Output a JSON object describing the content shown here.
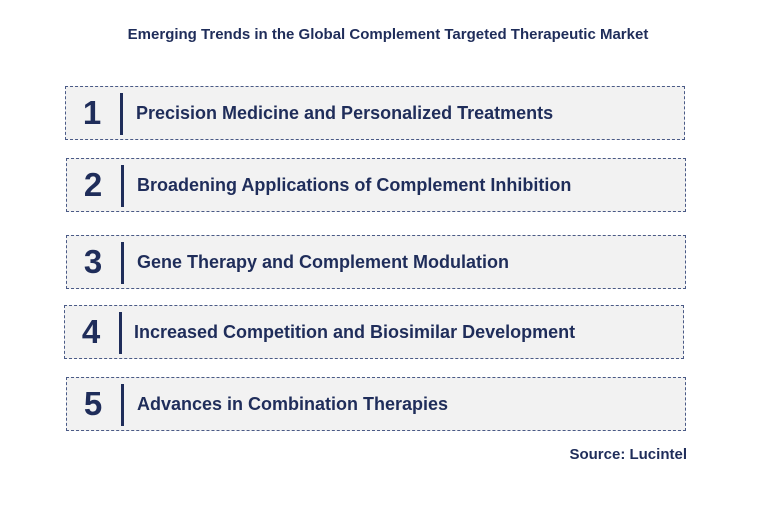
{
  "title": "Emerging Trends in the Global Complement Targeted Therapeutic Market",
  "items": [
    {
      "number": "1",
      "label": "Precision Medicine and Personalized Treatments"
    },
    {
      "number": "2",
      "label": "Broadening Applications of Complement Inhibition"
    },
    {
      "number": "3",
      "label": "Gene Therapy and Complement Modulation"
    },
    {
      "number": "4",
      "label": "Increased Competition and Biosimilar Development"
    },
    {
      "number": "5",
      "label": "Advances in Combination Therapies"
    }
  ],
  "source": "Source: Lucintel"
}
